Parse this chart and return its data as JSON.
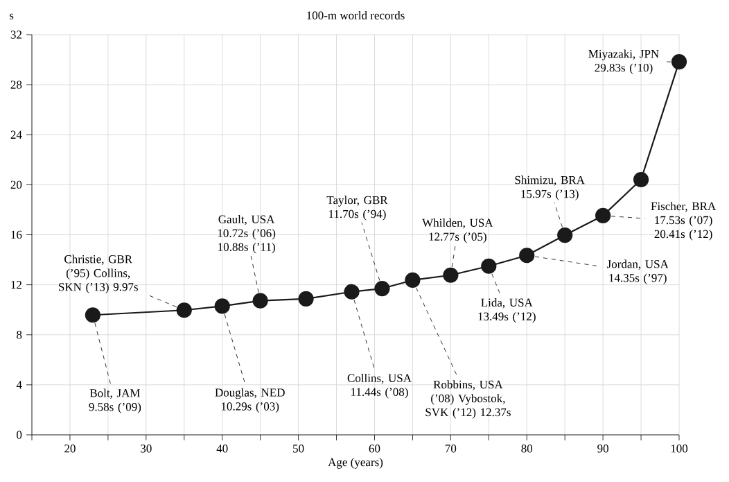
{
  "chart_data": {
    "type": "line",
    "title": "100-m world records",
    "xlabel": "Age (years)",
    "ylabel": "s",
    "x": [
      23,
      35,
      40,
      45,
      51,
      57,
      61,
      65,
      70,
      75,
      80,
      85,
      90,
      95,
      100
    ],
    "series": [
      {
        "color": "#1a1a1a",
        "values": [
          9.58,
          9.97,
          10.29,
          10.72,
          10.88,
          11.44,
          11.7,
          12.37,
          12.77,
          13.49,
          14.35,
          15.97,
          17.53,
          20.41,
          29.83
        ]
      }
    ],
    "xlim": [
      15,
      100
    ],
    "ylim": [
      0,
      32
    ],
    "xticks": [
      {
        "value": 15,
        "label": null
      },
      20,
      {
        "value": 25,
        "label": null
      },
      30,
      {
        "value": 35,
        "label": null
      },
      40,
      {
        "value": 45,
        "label": null
      },
      50,
      {
        "value": 55,
        "label": null
      },
      60,
      {
        "value": 65,
        "label": null
      },
      70,
      {
        "value": 75,
        "label": null
      },
      80,
      {
        "value": 85,
        "label": null
      },
      90,
      {
        "value": 95,
        "label": null
      },
      100
    ],
    "yticks": [
      0,
      4,
      8,
      12,
      16,
      20,
      24,
      28,
      32
    ],
    "grid": true,
    "marker": "circle",
    "line_style": "solid",
    "annotations": [
      {
        "text": "Bolt, JAM 9.58s (’09)",
        "x": 23,
        "y": 9.58
      },
      {
        "text": "Christie, GBR (’95) Collins, SKN (’13) 9.97s",
        "x": 35,
        "y": 9.97
      },
      {
        "text": "Douglas, NED 10.29s (’03)",
        "x": 40,
        "y": 10.29
      },
      {
        "text": "Gault, USA 10.72s (’06) 10.88s (’11)",
        "x": 45,
        "y": 10.72
      },
      {
        "text": "Collins, USA 11.44s (’08)",
        "x": 57,
        "y": 11.44
      },
      {
        "text": "Taylor, GBR 11.70s (’94)",
        "x": 61,
        "y": 11.7
      },
      {
        "text": "Robbins, USA (’08) Vybostok, SVK (’12) 12.37s",
        "x": 65,
        "y": 12.37
      },
      {
        "text": "Whilden, USA 12.77s (’05)",
        "x": 70,
        "y": 12.77
      },
      {
        "text": "Lida, USA 13.49s (’12)",
        "x": 75,
        "y": 13.49
      },
      {
        "text": "Jordan, USA 14.35s (’97)",
        "x": 80,
        "y": 14.35
      },
      {
        "text": "Shimizu, BRA 15.97s (’13)",
        "x": 85,
        "y": 15.97
      },
      {
        "text": "Fischer, BRA 17.53s (’07) 20.41s (’12)",
        "x": 90,
        "y": 17.53
      },
      {
        "text": "Miyazaki, JPN 29.83s (’10)",
        "x": 100,
        "y": 29.83
      }
    ]
  }
}
